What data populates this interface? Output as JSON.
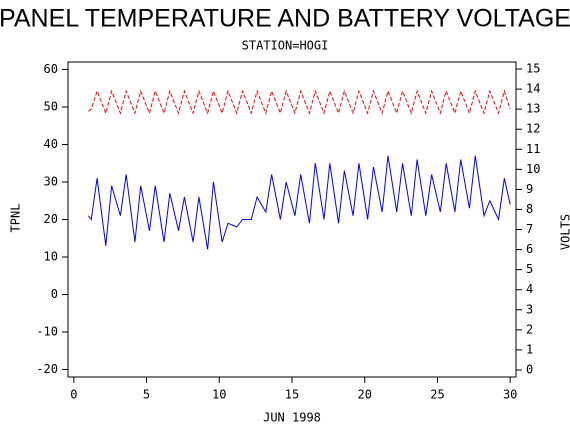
{
  "chart_data": {
    "type": "line",
    "title": "PANEL TEMPERATURE AND BATTERY VOLTAGE",
    "subtitle": "STATION=HOGI",
    "x_label": "JUN 1998",
    "y_label": "TPNL",
    "y2_label": "VOLTS",
    "x": [
      1.0,
      1.2,
      1.6,
      2.2,
      2.6,
      3.2,
      3.6,
      4.2,
      4.6,
      5.2,
      5.6,
      6.2,
      6.6,
      7.2,
      7.6,
      8.2,
      8.6,
      9.2,
      9.6,
      10.2,
      10.6,
      11.2,
      11.6,
      12.2,
      12.6,
      13.2,
      13.6,
      14.2,
      14.6,
      15.2,
      15.6,
      16.2,
      16.6,
      17.2,
      17.6,
      18.2,
      18.6,
      19.2,
      19.6,
      20.2,
      20.6,
      21.2,
      21.6,
      22.2,
      22.6,
      23.2,
      23.6,
      24.2,
      24.6,
      25.2,
      25.6,
      26.2,
      26.6,
      27.2,
      27.6,
      28.2,
      28.6,
      29.2,
      29.6,
      30.0
    ],
    "series": [
      {
        "name": "TPNL",
        "color": "#0000ff",
        "line_style": "solid",
        "values": [
          21,
          20,
          31,
          13,
          29,
          21,
          32,
          14,
          29,
          17,
          29,
          14,
          27,
          17,
          26,
          14,
          26,
          12,
          30,
          14,
          19,
          18,
          20,
          20,
          26,
          22,
          32,
          20,
          30,
          21,
          32,
          19,
          35,
          20,
          35,
          19,
          33,
          21,
          35,
          20,
          34,
          22,
          37,
          22,
          35,
          21,
          36,
          21,
          32,
          22,
          35,
          22,
          36,
          23,
          37,
          21,
          25,
          20,
          31,
          24
        ]
      },
      {
        "name": "VOLTS",
        "color": "#ff0000",
        "line_style": "dashed",
        "axis": "y2",
        "values": [
          12.9,
          13.0,
          13.9,
          12.8,
          13.9,
          12.8,
          13.9,
          12.8,
          13.9,
          12.8,
          13.9,
          12.8,
          13.9,
          12.8,
          13.9,
          12.8,
          13.9,
          12.8,
          13.9,
          12.8,
          13.9,
          12.8,
          13.9,
          12.8,
          13.9,
          12.8,
          13.9,
          12.8,
          13.9,
          12.8,
          13.9,
          12.8,
          13.9,
          12.8,
          13.9,
          12.8,
          13.9,
          12.8,
          13.9,
          12.8,
          13.9,
          12.8,
          13.9,
          12.8,
          13.9,
          12.8,
          13.9,
          12.8,
          13.9,
          12.8,
          13.9,
          12.8,
          13.9,
          12.8,
          13.9,
          12.8,
          13.9,
          12.8,
          13.9,
          13.0
        ]
      }
    ],
    "xlim": [
      -0.4,
      30.4
    ],
    "xticks": [
      0,
      5,
      10,
      15,
      20,
      25,
      30
    ],
    "ylim": [
      -22,
      62
    ],
    "yticks": [
      -20,
      -10,
      0,
      10,
      20,
      30,
      40,
      50,
      60
    ],
    "y2lim": [
      -0.35,
      15.35
    ],
    "y2ticks": [
      0,
      1,
      2,
      3,
      4,
      5,
      6,
      7,
      8,
      9,
      10,
      11,
      12,
      13,
      14,
      15
    ]
  }
}
